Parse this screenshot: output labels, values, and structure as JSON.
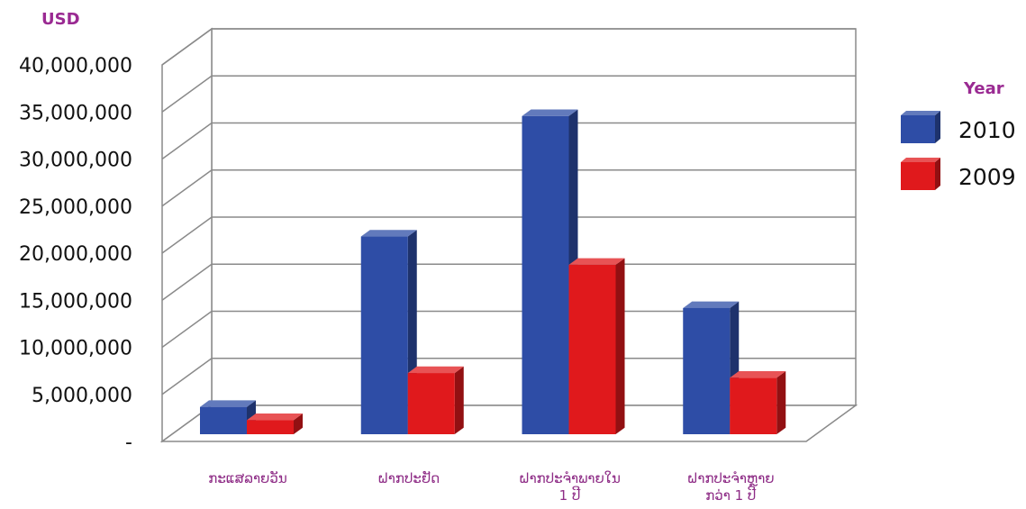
{
  "chart_data": {
    "type": "bar",
    "title": "",
    "ylabel": "USD",
    "xlabel": "",
    "ylim": [
      0,
      40000000
    ],
    "yticks": [
      0,
      5000000,
      10000000,
      15000000,
      20000000,
      25000000,
      30000000,
      35000000,
      40000000
    ],
    "ytick_labels": [
      "-",
      "5,000,000",
      "10,000,000",
      "15,000,000",
      "20,000,000",
      "25,000,000",
      "30,000,000",
      "35,000,000",
      "40,000,000"
    ],
    "categories": [
      [
        "ກະແສລາຍວັນ"
      ],
      [
        "ຝາກປະຢັດ"
      ],
      [
        "ຝາກປະຈຳພາຍໃນ",
        "1 ປີ"
      ],
      [
        "ຝາກປະຈຳຫຼາຍ",
        "ກວ່າ 1 ປີ"
      ]
    ],
    "legend_title": "Year",
    "legend_position": "right",
    "grid": true,
    "series": [
      {
        "name": "2010",
        "color": "#2e4da6",
        "values": [
          2900000,
          21000000,
          33800000,
          13400000
        ]
      },
      {
        "name": "2009",
        "color": "#e0191c",
        "values": [
          1500000,
          6500000,
          18000000,
          6000000
        ]
      }
    ]
  }
}
